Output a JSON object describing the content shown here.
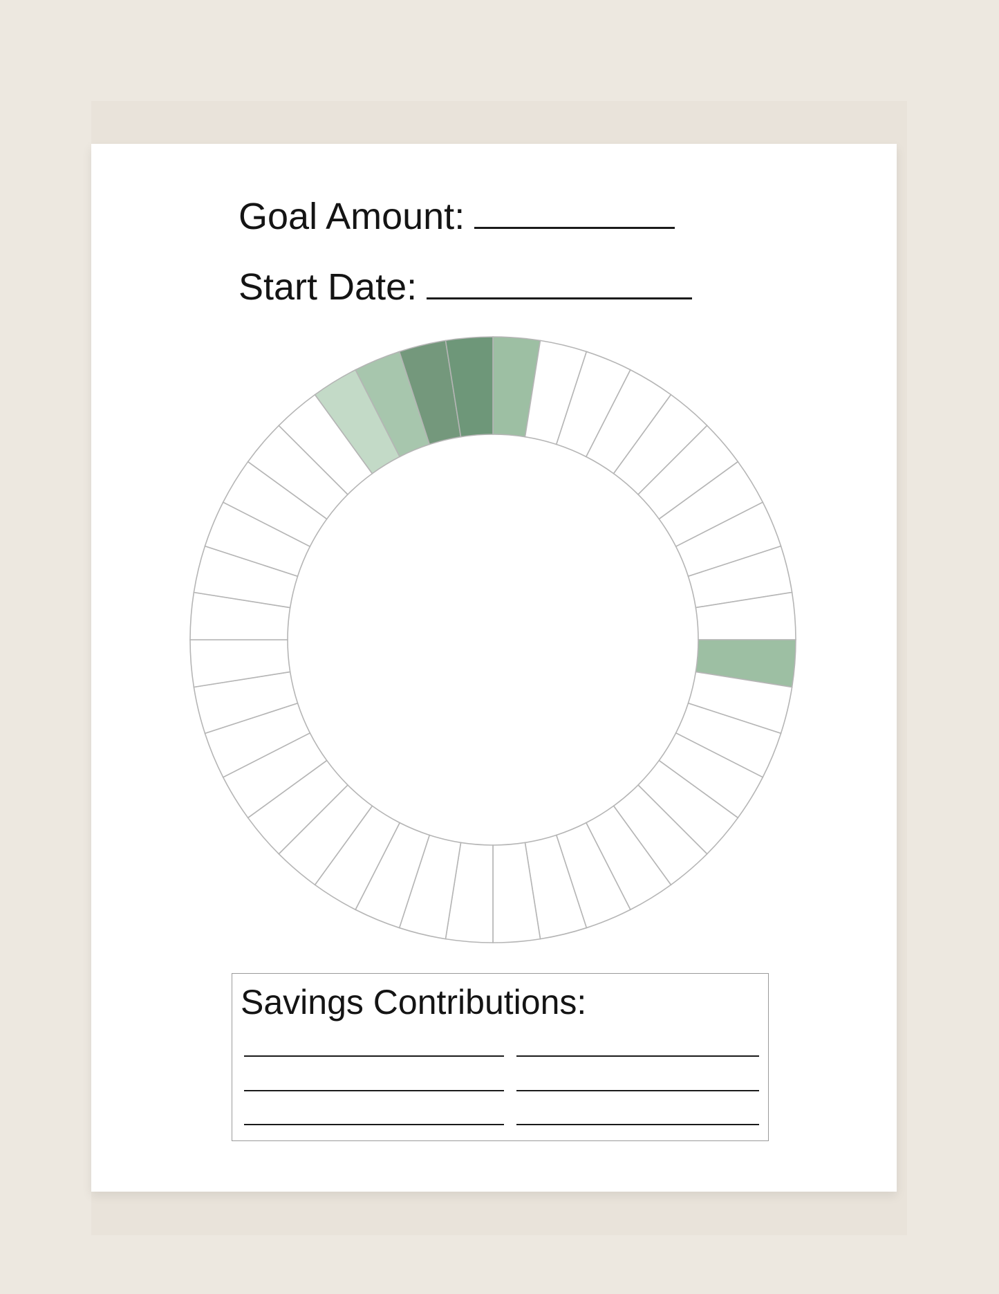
{
  "form": {
    "goal_label": "Goal Amount:",
    "start_label": "Start Date:",
    "contributions_label": "Savings Contributions:"
  },
  "tracker": {
    "segments": 40,
    "filled": [
      {
        "index": 0,
        "color": "#9dbfa3"
      },
      {
        "index": 10,
        "color": "#9dbfa3"
      },
      {
        "index": 39,
        "color": "#6e9779"
      },
      {
        "index": 38,
        "color": "#74987c"
      },
      {
        "index": 37,
        "color": "#a7c6ad"
      },
      {
        "index": 36,
        "color": "#c3dac7"
      }
    ]
  }
}
